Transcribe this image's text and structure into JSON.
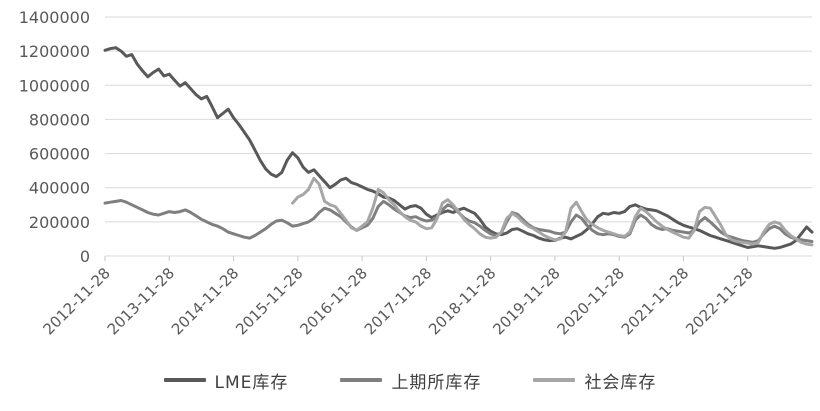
{
  "chart_data": {
    "type": "line",
    "title": "",
    "xlabel": "",
    "ylabel": "",
    "ylim": [
      0,
      1400000
    ],
    "y_ticks": [
      0,
      200000,
      400000,
      600000,
      800000,
      1000000,
      1200000,
      1400000
    ],
    "grid": "horizontal",
    "gridline_color": "#d9d9d9",
    "axis_color": "#c6c6c6",
    "tick_label_color": "#595959",
    "legend_position": "bottom",
    "x_unit": "months",
    "x_months_total": 132,
    "x_start_date": "2012-11-28",
    "x_tick_labels": [
      "2012-11-28",
      "2013-11-28",
      "2014-11-28",
      "2015-11-28",
      "2016-11-28",
      "2017-11-28",
      "2018-11-28",
      "2019-11-28",
      "2020-11-28",
      "2021-11-28",
      "2022-11-28"
    ],
    "x_tick_month_indices": [
      0,
      12,
      24,
      36,
      48,
      60,
      72,
      84,
      96,
      108,
      120
    ],
    "series": [
      {
        "name": "LME库存",
        "color": "#595959",
        "start_month_index": 0,
        "values": [
          1205000,
          1215000,
          1220000,
          1200000,
          1170000,
          1180000,
          1125000,
          1085000,
          1050000,
          1075000,
          1095000,
          1055000,
          1065000,
          1030000,
          995000,
          1015000,
          980000,
          945000,
          920000,
          935000,
          875000,
          810000,
          835000,
          860000,
          810000,
          770000,
          725000,
          680000,
          620000,
          560000,
          510000,
          480000,
          465000,
          490000,
          560000,
          605000,
          575000,
          520000,
          490000,
          505000,
          470000,
          435000,
          400000,
          420000,
          445000,
          455000,
          430000,
          420000,
          405000,
          390000,
          380000,
          365000,
          345000,
          340000,
          325000,
          300000,
          275000,
          290000,
          295000,
          280000,
          245000,
          225000,
          240000,
          255000,
          265000,
          255000,
          270000,
          280000,
          265000,
          250000,
          215000,
          170000,
          145000,
          130000,
          125000,
          135000,
          155000,
          160000,
          145000,
          130000,
          120000,
          105000,
          95000,
          90000,
          92000,
          105000,
          110000,
          100000,
          115000,
          130000,
          155000,
          190000,
          230000,
          250000,
          245000,
          255000,
          250000,
          260000,
          290000,
          300000,
          285000,
          275000,
          270000,
          265000,
          250000,
          235000,
          215000,
          195000,
          180000,
          170000,
          160000,
          150000,
          135000,
          120000,
          110000,
          100000,
          90000,
          80000,
          70000,
          60000,
          50000,
          55000,
          60000,
          55000,
          50000,
          45000,
          50000,
          60000,
          70000,
          90000,
          130000,
          170000,
          140000
        ]
      },
      {
        "name": "上期所库存",
        "color": "#7f7f7f",
        "start_month_index": 0,
        "values": [
          310000,
          315000,
          320000,
          325000,
          315000,
          300000,
          285000,
          270000,
          255000,
          245000,
          240000,
          250000,
          260000,
          255000,
          260000,
          270000,
          255000,
          235000,
          215000,
          200000,
          185000,
          175000,
          160000,
          140000,
          130000,
          120000,
          110000,
          105000,
          120000,
          140000,
          160000,
          185000,
          205000,
          210000,
          195000,
          175000,
          180000,
          190000,
          200000,
          220000,
          255000,
          280000,
          270000,
          250000,
          230000,
          200000,
          170000,
          150000,
          165000,
          180000,
          220000,
          290000,
          320000,
          300000,
          275000,
          255000,
          235000,
          225000,
          230000,
          215000,
          205000,
          210000,
          230000,
          270000,
          300000,
          285000,
          255000,
          225000,
          205000,
          195000,
          175000,
          150000,
          130000,
          120000,
          135000,
          200000,
          255000,
          245000,
          215000,
          185000,
          165000,
          155000,
          150000,
          145000,
          135000,
          130000,
          140000,
          200000,
          240000,
          220000,
          180000,
          150000,
          130000,
          125000,
          130000,
          125000,
          115000,
          110000,
          130000,
          210000,
          240000,
          220000,
          185000,
          165000,
          155000,
          160000,
          150000,
          145000,
          140000,
          135000,
          150000,
          200000,
          225000,
          200000,
          170000,
          140000,
          120000,
          110000,
          100000,
          90000,
          85000,
          80000,
          90000,
          130000,
          160000,
          175000,
          160000,
          130000,
          110000,
          100000,
          95000,
          90000,
          85000
        ]
      },
      {
        "name": "社会库存",
        "color": "#a6a6a6",
        "start_month_index": 35,
        "values": [
          310000,
          345000,
          360000,
          390000,
          455000,
          420000,
          320000,
          300000,
          290000,
          250000,
          210000,
          165000,
          150000,
          175000,
          200000,
          280000,
          390000,
          370000,
          330000,
          300000,
          260000,
          230000,
          210000,
          200000,
          175000,
          160000,
          165000,
          220000,
          310000,
          330000,
          300000,
          260000,
          215000,
          185000,
          160000,
          130000,
          110000,
          105000,
          110000,
          140000,
          220000,
          250000,
          230000,
          200000,
          175000,
          160000,
          140000,
          120000,
          105000,
          95000,
          100000,
          140000,
          280000,
          315000,
          260000,
          210000,
          185000,
          165000,
          150000,
          140000,
          130000,
          120000,
          115000,
          140000,
          230000,
          280000,
          260000,
          230000,
          200000,
          175000,
          155000,
          140000,
          125000,
          110000,
          105000,
          150000,
          260000,
          285000,
          280000,
          230000,
          180000,
          120000,
          95000,
          85000,
          80000,
          75000,
          70000,
          80000,
          140000,
          185000,
          200000,
          190000,
          150000,
          120000,
          100000,
          80000,
          70000,
          65000
        ]
      }
    ],
    "legend_entries": [
      "LME库存",
      "上期所库存",
      "社会库存"
    ]
  }
}
